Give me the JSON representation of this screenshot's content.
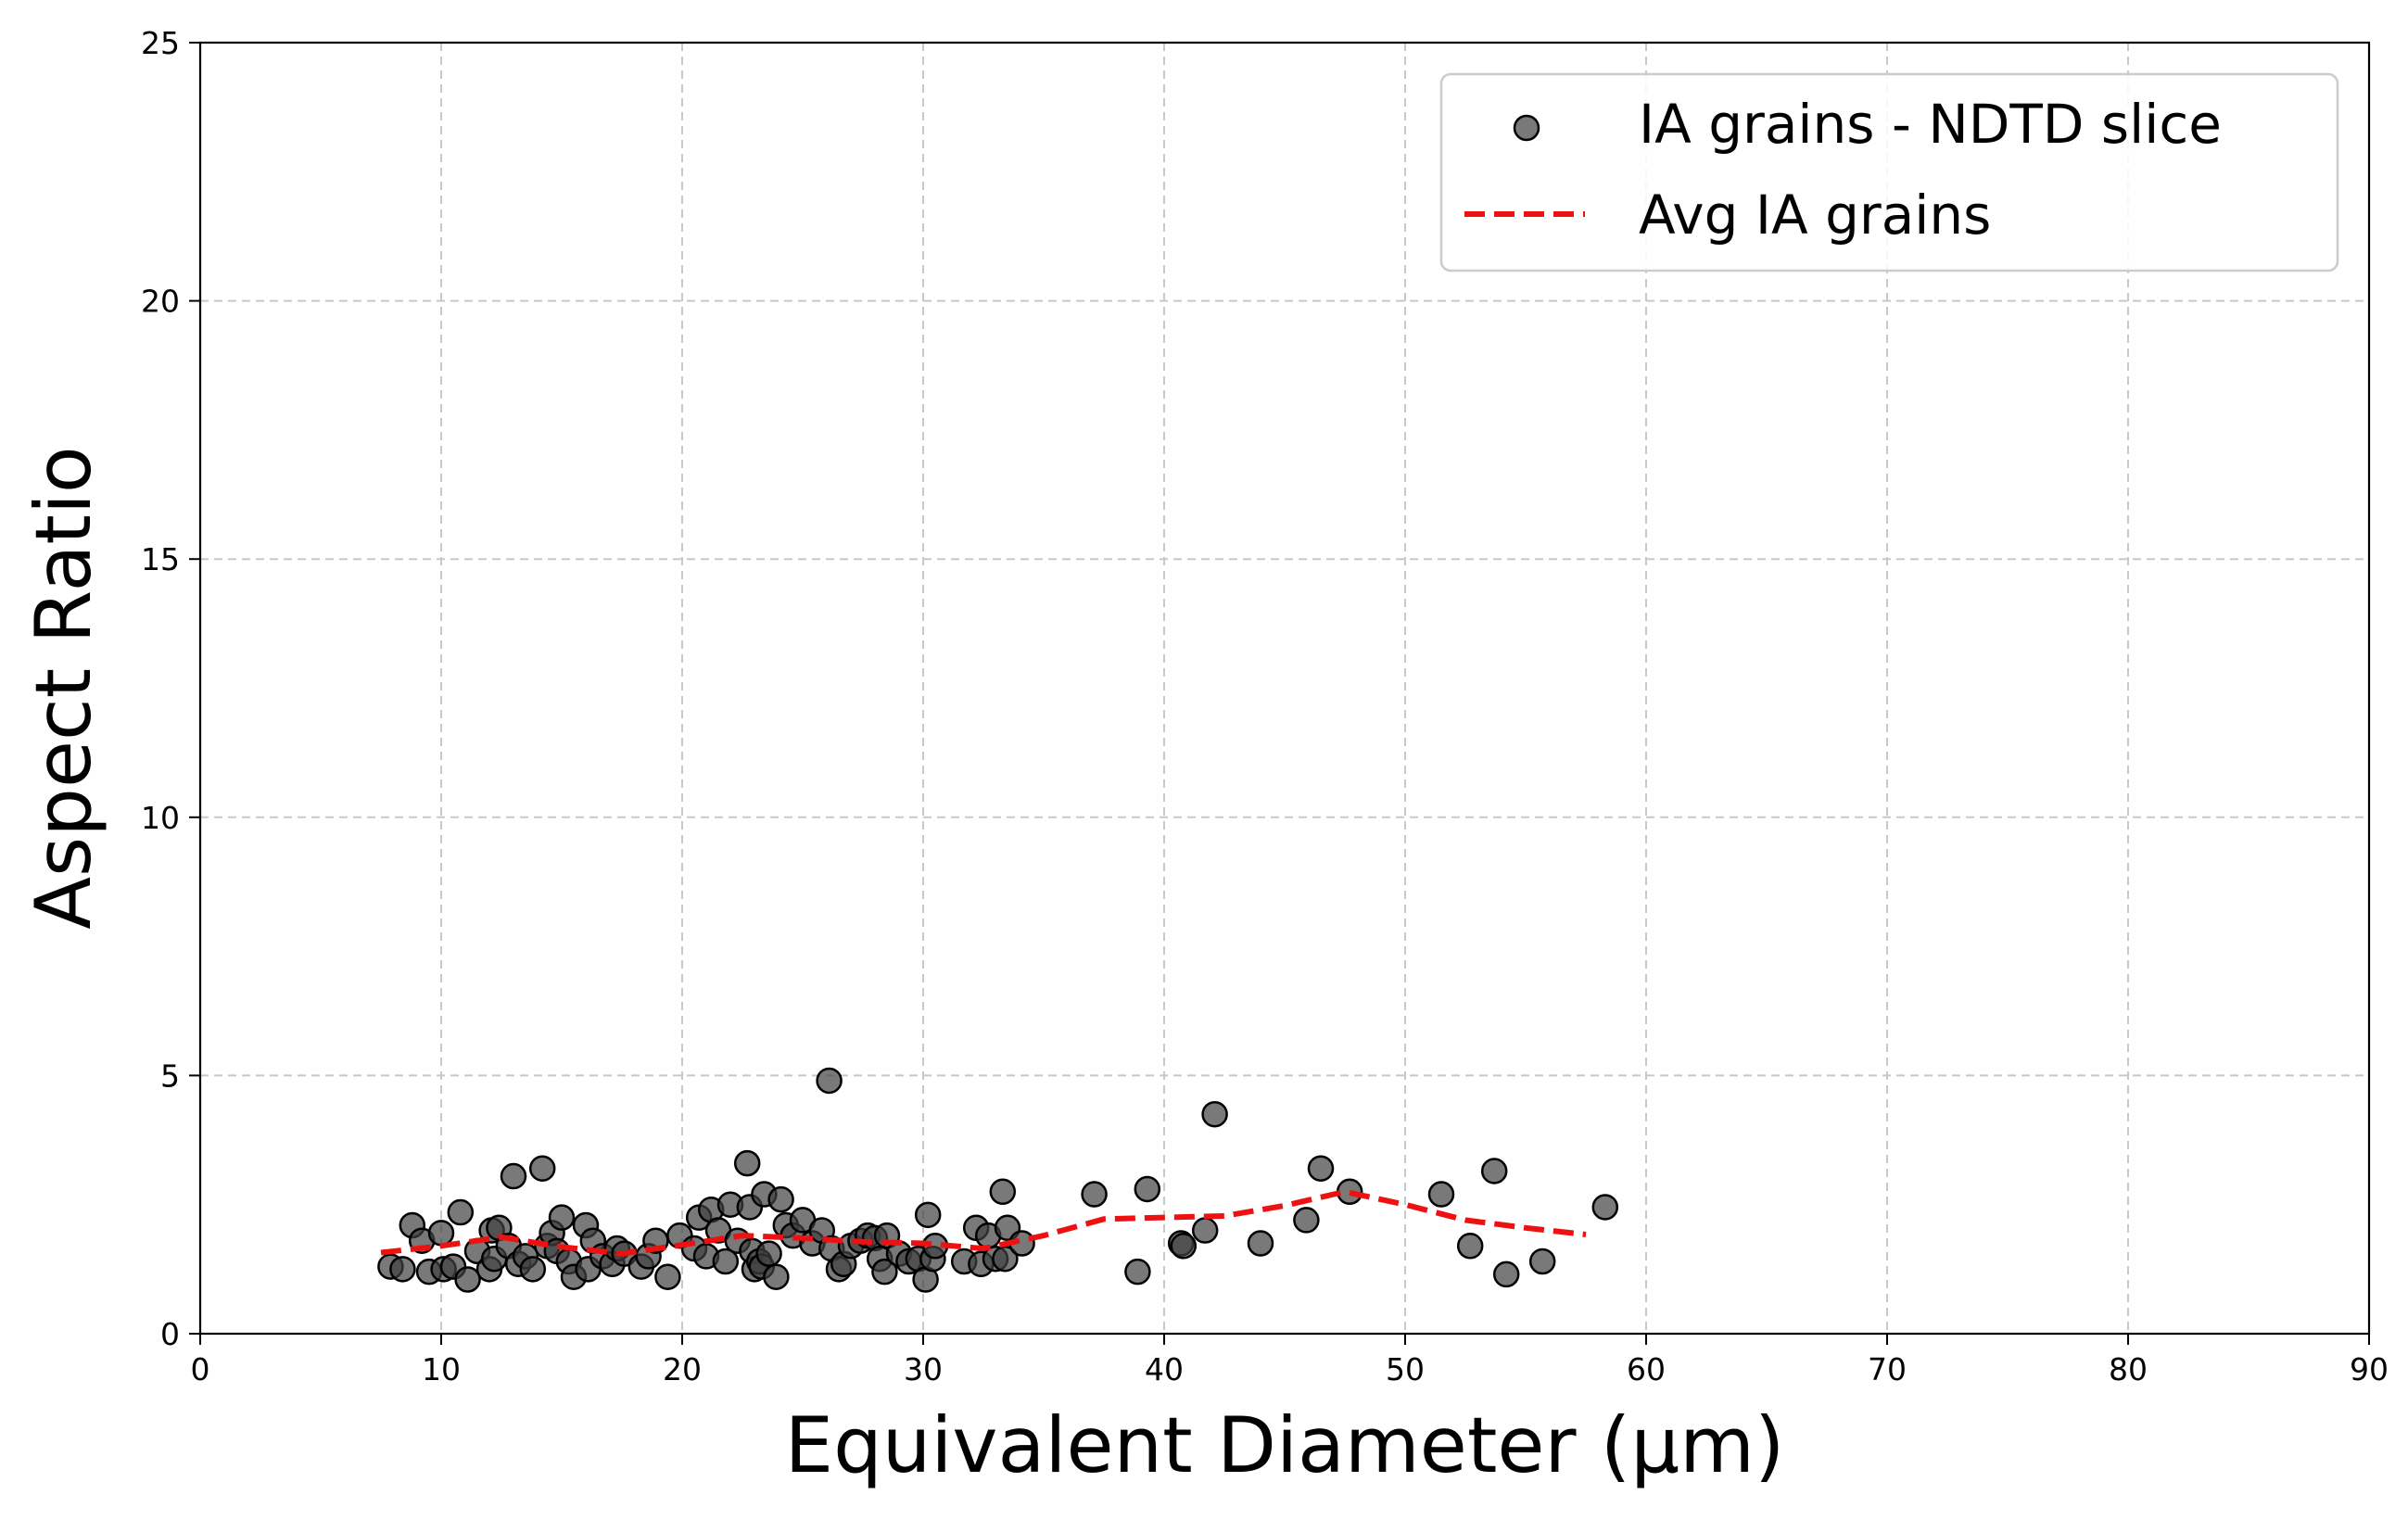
{
  "chart_data": {
    "type": "scatter",
    "title": "",
    "xlabel": "Equivalent Diameter (µm)",
    "ylabel": "Aspect Ratio",
    "xlim": [
      0,
      90
    ],
    "ylim": [
      0,
      25
    ],
    "xticks": [
      0,
      10,
      20,
      30,
      40,
      50,
      60,
      70,
      80,
      90
    ],
    "yticks": [
      0,
      5,
      10,
      15,
      20,
      25
    ],
    "grid": true,
    "legend_position": "top-right",
    "series": [
      {
        "name": "IA grains - NDTD slice",
        "kind": "scatter",
        "color": "#404040",
        "edge_color": "#000000",
        "points": [
          [
            7.9,
            1.3
          ],
          [
            8.4,
            1.25
          ],
          [
            8.8,
            2.1
          ],
          [
            9.2,
            1.8
          ],
          [
            9.5,
            1.2
          ],
          [
            10.0,
            1.95
          ],
          [
            10.1,
            1.25
          ],
          [
            10.5,
            1.3
          ],
          [
            10.8,
            2.35
          ],
          [
            11.1,
            1.05
          ],
          [
            11.5,
            1.6
          ],
          [
            12.0,
            1.25
          ],
          [
            12.1,
            2.0
          ],
          [
            12.2,
            1.45
          ],
          [
            12.4,
            2.05
          ],
          [
            12.8,
            1.7
          ],
          [
            13.0,
            3.05
          ],
          [
            13.2,
            1.35
          ],
          [
            13.5,
            1.5
          ],
          [
            13.8,
            1.25
          ],
          [
            14.2,
            3.2
          ],
          [
            14.4,
            1.7
          ],
          [
            14.6,
            1.95
          ],
          [
            14.8,
            1.6
          ],
          [
            15.0,
            2.25
          ],
          [
            15.3,
            1.4
          ],
          [
            15.5,
            1.1
          ],
          [
            16.0,
            2.1
          ],
          [
            16.1,
            1.25
          ],
          [
            16.3,
            1.8
          ],
          [
            16.7,
            1.5
          ],
          [
            17.1,
            1.35
          ],
          [
            17.3,
            1.65
          ],
          [
            17.6,
            1.55
          ],
          [
            18.3,
            1.3
          ],
          [
            18.6,
            1.5
          ],
          [
            18.9,
            1.8
          ],
          [
            19.4,
            1.1
          ],
          [
            19.9,
            1.9
          ],
          [
            20.5,
            1.65
          ],
          [
            20.7,
            2.25
          ],
          [
            21.0,
            1.5
          ],
          [
            21.2,
            2.4
          ],
          [
            21.5,
            2.0
          ],
          [
            21.8,
            1.4
          ],
          [
            22.0,
            2.5
          ],
          [
            22.3,
            1.8
          ],
          [
            22.7,
            3.3
          ],
          [
            22.8,
            2.45
          ],
          [
            22.9,
            1.6
          ],
          [
            23.0,
            1.25
          ],
          [
            23.2,
            1.4
          ],
          [
            23.3,
            1.3
          ],
          [
            23.4,
            2.7
          ],
          [
            23.6,
            1.55
          ],
          [
            23.9,
            1.1
          ],
          [
            24.1,
            2.6
          ],
          [
            24.3,
            2.1
          ],
          [
            24.6,
            1.9
          ],
          [
            25.0,
            2.2
          ],
          [
            25.4,
            1.75
          ],
          [
            25.8,
            2.0
          ],
          [
            26.1,
            4.9
          ],
          [
            26.2,
            1.65
          ],
          [
            26.5,
            1.25
          ],
          [
            26.7,
            1.35
          ],
          [
            27.0,
            1.7
          ],
          [
            27.4,
            1.8
          ],
          [
            27.7,
            1.9
          ],
          [
            28.0,
            1.85
          ],
          [
            28.2,
            1.45
          ],
          [
            28.4,
            1.2
          ],
          [
            28.5,
            1.9
          ],
          [
            29.0,
            1.55
          ],
          [
            29.4,
            1.4
          ],
          [
            29.8,
            1.45
          ],
          [
            30.1,
            1.05
          ],
          [
            30.2,
            2.3
          ],
          [
            30.4,
            1.45
          ],
          [
            30.5,
            1.7
          ],
          [
            31.7,
            1.4
          ],
          [
            32.2,
            2.05
          ],
          [
            32.4,
            1.35
          ],
          [
            32.7,
            1.9
          ],
          [
            33.0,
            1.45
          ],
          [
            33.3,
            2.75
          ],
          [
            33.4,
            1.45
          ],
          [
            33.5,
            2.05
          ],
          [
            34.1,
            1.75
          ],
          [
            37.1,
            2.7
          ],
          [
            38.9,
            1.2
          ],
          [
            39.3,
            2.8
          ],
          [
            40.7,
            1.75
          ],
          [
            40.8,
            1.7
          ],
          [
            41.7,
            2.0
          ],
          [
            42.1,
            4.25
          ],
          [
            44.0,
            1.75
          ],
          [
            45.9,
            2.2
          ],
          [
            46.5,
            3.2
          ],
          [
            47.7,
            2.75
          ],
          [
            51.5,
            2.7
          ],
          [
            52.7,
            1.7
          ],
          [
            53.7,
            3.15
          ],
          [
            54.2,
            1.15
          ],
          [
            55.7,
            1.4
          ],
          [
            58.3,
            2.45
          ]
        ]
      },
      {
        "name": "Avg IA grains",
        "kind": "line",
        "color": "#ee1111",
        "dash": "dashed",
        "points": [
          [
            7.5,
            1.57
          ],
          [
            10.0,
            1.7
          ],
          [
            12.5,
            1.87
          ],
          [
            15.0,
            1.68
          ],
          [
            17.5,
            1.55
          ],
          [
            20.0,
            1.72
          ],
          [
            22.5,
            1.9
          ],
          [
            25.0,
            1.85
          ],
          [
            27.5,
            1.78
          ],
          [
            30.0,
            1.75
          ],
          [
            32.5,
            1.65
          ],
          [
            35.0,
            1.9
          ],
          [
            37.5,
            2.22
          ],
          [
            40.0,
            2.25
          ],
          [
            42.5,
            2.28
          ],
          [
            45.0,
            2.48
          ],
          [
            47.5,
            2.75
          ],
          [
            50.0,
            2.5
          ],
          [
            52.5,
            2.2
          ],
          [
            55.0,
            2.05
          ],
          [
            57.5,
            1.92
          ]
        ]
      }
    ]
  }
}
